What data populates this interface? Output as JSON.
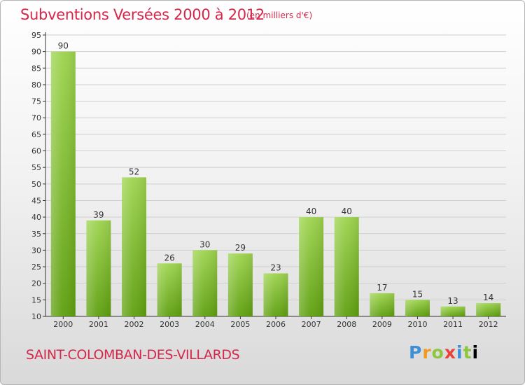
{
  "header": {
    "title": "Subventions Versées 2000 à 2012",
    "subtitle": "(en milliers d'€)"
  },
  "footer": {
    "commune": "SAINT-COLOMBAN-DES-VILLARDS",
    "logo": "Proxiti"
  },
  "colors": {
    "bar_top": "#9ed44f",
    "bar_bottom": "#5fa010",
    "title": "#d5274a",
    "axis": "#333333",
    "grid": "#cfcfcf"
  },
  "chart_data": {
    "type": "bar",
    "title": "Subventions Versées 2000 à 2012",
    "subtitle": "(en milliers d'€)",
    "categories": [
      "2000",
      "2001",
      "2002",
      "2003",
      "2004",
      "2005",
      "2006",
      "2007",
      "2008",
      "2009",
      "2010",
      "2011",
      "2012"
    ],
    "values": [
      90,
      39,
      52,
      26,
      30,
      29,
      23,
      40,
      40,
      17,
      15,
      13,
      14
    ],
    "ylim": [
      10,
      95
    ],
    "yticks": [
      10,
      15,
      20,
      25,
      30,
      35,
      40,
      45,
      50,
      55,
      60,
      65,
      70,
      75,
      80,
      85,
      90,
      95
    ],
    "grid": true,
    "data_labels": true
  }
}
